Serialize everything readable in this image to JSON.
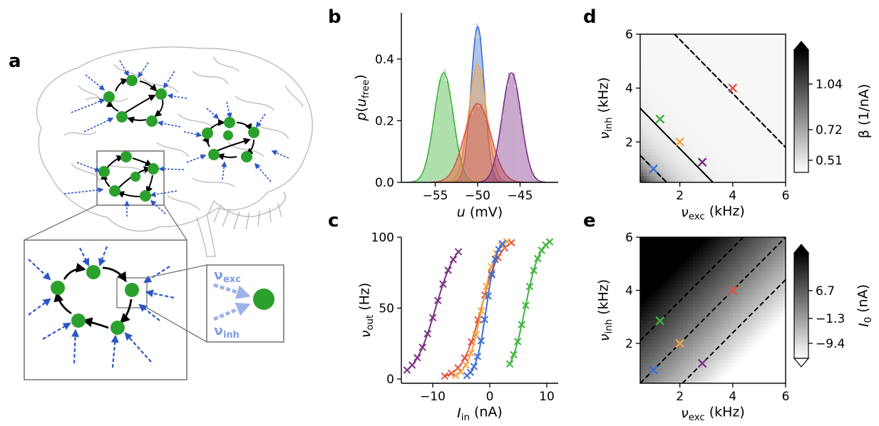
{
  "panels": {
    "a": {
      "letter": "a",
      "inset_labels": {
        "exc": "ν",
        "exc_sub": "exc",
        "inh": "ν",
        "inh_sub": "inh"
      }
    },
    "b": {
      "letter": "b"
    },
    "c": {
      "letter": "c"
    },
    "d": {
      "letter": "d"
    },
    "e": {
      "letter": "e"
    }
  },
  "colors": {
    "blue": "#3f6fd1",
    "orange": "#f5a243",
    "red": "#e0533f",
    "purple": "#7b2f85",
    "green": "#3db23a",
    "neuron": "#2ca02c",
    "input_arrow": "#2c55c8"
  },
  "chart_data": [
    {
      "id": "b",
      "type": "area",
      "xlabel": "u (mV)",
      "ylabel": "p(u_free)",
      "xlim": [
        -59,
        -40.5
      ],
      "ylim": [
        0,
        0.55
      ],
      "xticks": [
        "−55",
        "−50",
        "−45"
      ],
      "xtick_values": [
        -55,
        -50,
        -45
      ],
      "yticks": [
        "0.0",
        "0.2",
        "0.4"
      ],
      "ytick_values": [
        0.0,
        0.2,
        0.4
      ],
      "series": [
        {
          "color": "green",
          "mean": -54.0,
          "sd": 1.13,
          "peak": 0.355
        },
        {
          "color": "blue",
          "mean": -50.0,
          "sd": 0.79,
          "peak": 0.505
        },
        {
          "color": "orange",
          "mean": -50.0,
          "sd": 1.05,
          "peak": 0.38
        },
        {
          "color": "red",
          "mean": -50.0,
          "sd": 1.55,
          "peak": 0.255
        },
        {
          "color": "purple",
          "mean": -46.0,
          "sd": 1.12,
          "peak": 0.355
        }
      ]
    },
    {
      "id": "c",
      "type": "line",
      "xlabel": "I_in (nA)",
      "ylabel": "ν_out (Hz)",
      "xlim": [
        -15.5,
        12
      ],
      "ylim": [
        -3,
        100
      ],
      "xticks": [
        "−10",
        "0",
        "10"
      ],
      "xtick_values": [
        -10,
        0,
        10
      ],
      "yticks": [
        "0",
        "50",
        "100"
      ],
      "ytick_values": [
        0,
        50,
        100
      ],
      "series": [
        {
          "color": "purple",
          "x0": -9.5,
          "width": 4.8,
          "xmin": -14.5,
          "xmax": -5.5
        },
        {
          "color": "red",
          "x0": -1.5,
          "width": 4.3,
          "xmin": -7.9,
          "xmax": 3.8
        },
        {
          "color": "orange",
          "x0": -1.4,
          "width": 3.3,
          "xmin": -6.0,
          "xmax": 3.0
        },
        {
          "color": "blue",
          "x0": -0.6,
          "width": 2.4,
          "xmin": -4.0,
          "xmax": 2.2
        },
        {
          "color": "green",
          "x0": 6.2,
          "width": 3.3,
          "xmin": 3.5,
          "xmax": 10.5
        }
      ]
    },
    {
      "id": "d",
      "type": "heatmap",
      "xlabel": "ν_exc (kHz)",
      "ylabel": "ν_inh (kHz)",
      "xlim": [
        0.5,
        6
      ],
      "ylim": [
        0.5,
        6
      ],
      "xticks": [
        "2",
        "4",
        "6"
      ],
      "xtick_values": [
        2,
        4,
        6
      ],
      "yticks": [
        "2",
        "4",
        "6"
      ],
      "ytick_values": [
        2,
        4,
        6
      ],
      "colorbar_label": "β (1/nA)",
      "colorbar_ticks": [
        "1.04",
        "0.72",
        "0.51"
      ],
      "colorbar_tick_values": [
        1.04,
        0.72,
        0.51
      ],
      "contour_sums": [
        2.0,
        3.75,
        7.8
      ],
      "markers": [
        {
          "color": "blue",
          "x": 1.0,
          "y": 1.0
        },
        {
          "color": "green",
          "x": 1.25,
          "y": 2.85
        },
        {
          "color": "orange",
          "x": 2.0,
          "y": 2.0
        },
        {
          "color": "purple",
          "x": 2.85,
          "y": 1.25
        },
        {
          "color": "red",
          "x": 4.0,
          "y": 4.0
        }
      ]
    },
    {
      "id": "e",
      "type": "heatmap",
      "xlabel": "ν_exc (kHz)",
      "ylabel": "ν_inh (kHz)",
      "xlim": [
        0.5,
        6
      ],
      "ylim": [
        0.5,
        6
      ],
      "xticks": [
        "2",
        "4",
        "6"
      ],
      "xtick_values": [
        2,
        4,
        6
      ],
      "yticks": [
        "2",
        "4",
        "6"
      ],
      "ytick_values": [
        2,
        4,
        6
      ],
      "colorbar_label": "I_0 (nA)",
      "colorbar_ticks": [
        "6.7",
        "−1.3",
        "−9.4"
      ],
      "colorbar_tick_values": [
        6.7,
        -1.3,
        -9.4
      ],
      "contour_offsets": [
        1.6,
        0.0,
        -1.6
      ],
      "markers": [
        {
          "color": "blue",
          "x": 1.0,
          "y": 1.0
        },
        {
          "color": "green",
          "x": 1.25,
          "y": 2.85
        },
        {
          "color": "orange",
          "x": 2.0,
          "y": 2.0
        },
        {
          "color": "purple",
          "x": 2.85,
          "y": 1.25
        },
        {
          "color": "red",
          "x": 4.0,
          "y": 4.0
        }
      ]
    }
  ]
}
